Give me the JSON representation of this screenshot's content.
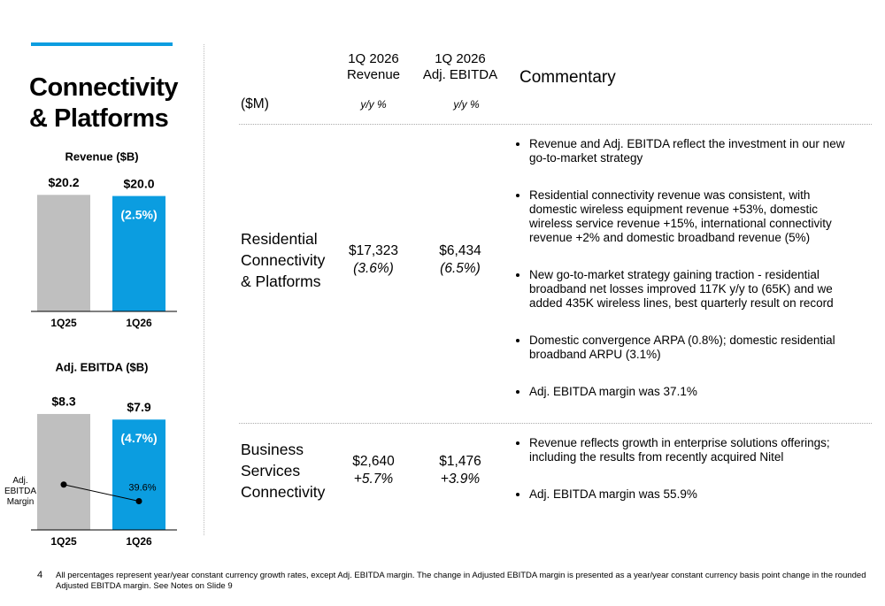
{
  "header": {
    "title_lines": [
      "Connectivity",
      "& Platforms"
    ]
  },
  "chart_data": [
    {
      "type": "bar",
      "title": "Revenue ($B)",
      "categories": [
        "1Q25",
        "1Q26"
      ],
      "values": [
        20.2,
        20.0
      ],
      "value_labels": [
        "$20.2",
        "$20.0"
      ],
      "colors": [
        "#bfbfbf",
        "#0b9de0"
      ],
      "ylim": [
        0,
        23
      ],
      "annotation": "(2.5%)"
    },
    {
      "type": "bar",
      "title": "Adj. EBITDA ($B)",
      "categories": [
        "1Q25",
        "1Q26"
      ],
      "values": [
        8.3,
        7.9
      ],
      "value_labels": [
        "$8.3",
        "$7.9"
      ],
      "colors": [
        "#bfbfbf",
        "#0b9de0"
      ],
      "ylim": [
        0,
        9.5
      ],
      "annotation": "(4.7%)",
      "series": [
        {
          "name": "Adj. EBITDA Margin",
          "axis": "y2",
          "color": "#000000",
          "values": [
            41.1,
            39.6
          ],
          "value_labels": [
            null,
            "39.6%"
          ]
        }
      ],
      "y2lim": [
        37,
        49
      ]
    }
  ],
  "table": {
    "unit": "($M)",
    "columns": [
      {
        "title_lines": [
          "1Q 2026",
          "Revenue"
        ],
        "sub": "y/y %"
      },
      {
        "title_lines": [
          "1Q 2026",
          "Adj. EBITDA"
        ],
        "sub": "y/y %"
      },
      {
        "title_lines": [
          "Commentary"
        ]
      }
    ],
    "rows": [
      {
        "segment": "Residential Connectivity & Platforms",
        "revenue": "$17,323",
        "revenue_change": "(3.6%)",
        "ebitda": "$6,434",
        "ebitda_change": "(6.5%)",
        "commentary": [
          "Revenue and Adj. EBITDA reflect the investment in our new go-to-market strategy",
          "Residential connectivity revenue was consistent, with domestic wireless equipment revenue +53%, domestic wireless service revenue +15%, international connectivity revenue +2% and domestic broadband revenue (5%)",
          "New go-to-market strategy gaining traction - residential broadband net losses improved 117K y/y to (65K) and we added 435K wireless lines, best quarterly result on record",
          "Domestic convergence ARPA (0.8%); domestic residential broadband ARPU (3.1%)",
          "Adj. EBITDA margin was 37.1%"
        ]
      },
      {
        "segment": "Business Services Connectivity",
        "revenue": "$2,640",
        "revenue_change": "+5.7%",
        "ebitda": "$1,476",
        "ebitda_change": "+3.9%",
        "commentary": [
          "Revenue reflects growth in enterprise solutions offerings; including the results from recently acquired Nitel",
          "Adj. EBITDA margin was 55.9%"
        ]
      }
    ]
  },
  "footer": {
    "page": "4",
    "note": "All percentages represent year/year constant currency growth rates, except Adj. EBITDA margin. The change in Adjusted EBITDA margin is presented as a year/year constant currency basis point change in the rounded Adjusted EBITDA margin. See Notes on Slide 9"
  }
}
